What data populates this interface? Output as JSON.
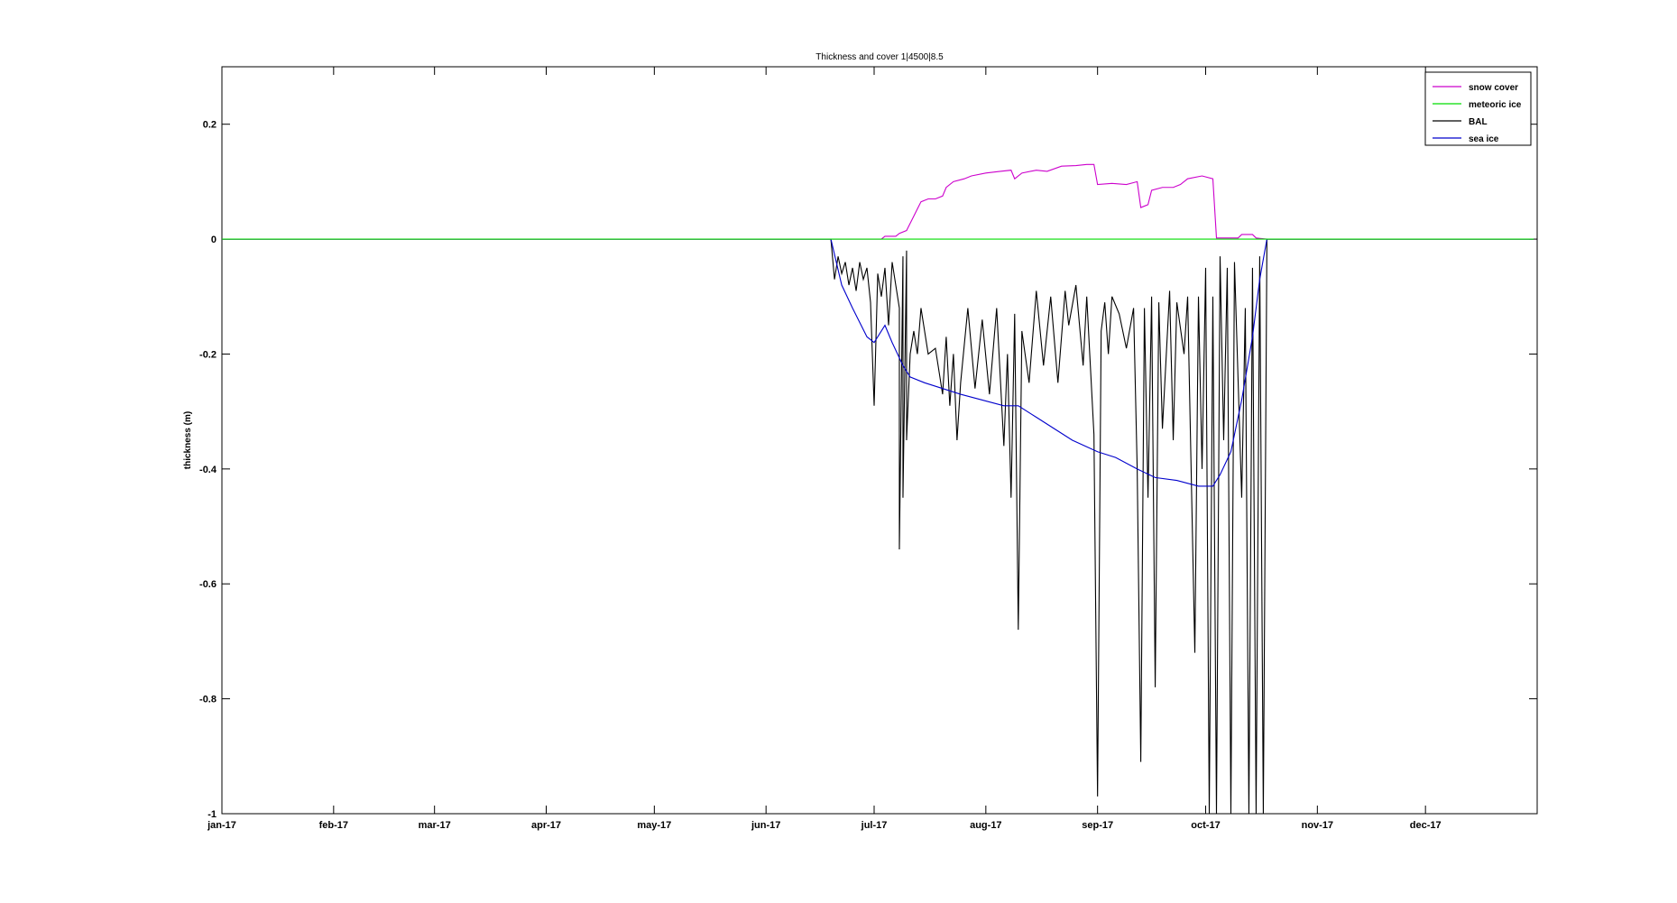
{
  "chart_data": {
    "type": "line",
    "title": "Thickness and cover 1|4500|8.5",
    "xlabel": "",
    "ylabel": "thickness (m)",
    "xlim": [
      "2017-01-01",
      "2017-12-31"
    ],
    "ylim": [
      -1,
      0.3
    ],
    "x_ticks": [
      "jan-17",
      "feb-17",
      "mar-17",
      "apr-17",
      "may-17",
      "jun-17",
      "jul-17",
      "aug-17",
      "sep-17",
      "oct-17",
      "nov-17",
      "dec-17"
    ],
    "x_tick_dates": [
      "2017-01-01",
      "2017-02-01",
      "2017-03-01",
      "2017-04-01",
      "2017-05-01",
      "2017-06-01",
      "2017-07-01",
      "2017-08-01",
      "2017-09-01",
      "2017-10-01",
      "2017-11-01",
      "2017-12-01"
    ],
    "y_ticks": [
      0.2,
      0,
      -0.2,
      -0.4,
      -0.6,
      -0.8,
      -1
    ],
    "y_tick_labels": [
      "0.2",
      "0",
      "-0.2",
      "-0.4",
      "-0.6",
      "-0.8",
      "-1"
    ],
    "grid": false,
    "legend_position": "top-right",
    "series": [
      {
        "name": "snow cover",
        "color": "#cc00cc",
        "points": [
          [
            "2017-01-01",
            0
          ],
          [
            "2017-06-19",
            0
          ],
          [
            "2017-07-03",
            0
          ],
          [
            "2017-07-04",
            0.005
          ],
          [
            "2017-07-07",
            0.005
          ],
          [
            "2017-07-08",
            0.01
          ],
          [
            "2017-07-10",
            0.015
          ],
          [
            "2017-07-12",
            0.04
          ],
          [
            "2017-07-14",
            0.065
          ],
          [
            "2017-07-16",
            0.07
          ],
          [
            "2017-07-18",
            0.07
          ],
          [
            "2017-07-20",
            0.075
          ],
          [
            "2017-07-21",
            0.09
          ],
          [
            "2017-07-23",
            0.1
          ],
          [
            "2017-07-26",
            0.105
          ],
          [
            "2017-07-28",
            0.11
          ],
          [
            "2017-08-01",
            0.115
          ],
          [
            "2017-08-05",
            0.118
          ],
          [
            "2017-08-08",
            0.12
          ],
          [
            "2017-08-09",
            0.105
          ],
          [
            "2017-08-11",
            0.115
          ],
          [
            "2017-08-15",
            0.12
          ],
          [
            "2017-08-18",
            0.118
          ],
          [
            "2017-08-22",
            0.127
          ],
          [
            "2017-08-26",
            0.128
          ],
          [
            "2017-08-29",
            0.13
          ],
          [
            "2017-08-31",
            0.13
          ],
          [
            "2017-09-01",
            0.095
          ],
          [
            "2017-09-05",
            0.097
          ],
          [
            "2017-09-09",
            0.095
          ],
          [
            "2017-09-12",
            0.1
          ],
          [
            "2017-09-13",
            0.055
          ],
          [
            "2017-09-15",
            0.06
          ],
          [
            "2017-09-16",
            0.085
          ],
          [
            "2017-09-19",
            0.09
          ],
          [
            "2017-09-22",
            0.09
          ],
          [
            "2017-09-24",
            0.095
          ],
          [
            "2017-09-26",
            0.105
          ],
          [
            "2017-09-30",
            0.11
          ],
          [
            "2017-10-03",
            0.105
          ],
          [
            "2017-10-04",
            0.002
          ],
          [
            "2017-10-10",
            0.002
          ],
          [
            "2017-10-11",
            0.008
          ],
          [
            "2017-10-14",
            0.008
          ],
          [
            "2017-10-15",
            0.002
          ],
          [
            "2017-10-18",
            0
          ],
          [
            "2017-12-31",
            0
          ]
        ]
      },
      {
        "name": "meteoric ice",
        "color": "#00dd00",
        "points": [
          [
            "2017-01-01",
            0
          ],
          [
            "2017-12-31",
            0
          ]
        ]
      },
      {
        "name": "BAL",
        "color": "#000000",
        "points": [
          [
            "2017-01-01",
            0
          ],
          [
            "2017-06-19",
            0
          ],
          [
            "2017-06-20",
            -0.07
          ],
          [
            "2017-06-21",
            -0.03
          ],
          [
            "2017-06-22",
            -0.06
          ],
          [
            "2017-06-23",
            -0.04
          ],
          [
            "2017-06-24",
            -0.08
          ],
          [
            "2017-06-25",
            -0.05
          ],
          [
            "2017-06-26",
            -0.09
          ],
          [
            "2017-06-27",
            -0.04
          ],
          [
            "2017-06-28",
            -0.07
          ],
          [
            "2017-06-29",
            -0.05
          ],
          [
            "2017-06-30",
            -0.11
          ],
          [
            "2017-07-01",
            -0.29
          ],
          [
            "2017-07-02",
            -0.06
          ],
          [
            "2017-07-03",
            -0.1
          ],
          [
            "2017-07-04",
            -0.05
          ],
          [
            "2017-07-05",
            -0.15
          ],
          [
            "2017-07-06",
            -0.04
          ],
          [
            "2017-07-07",
            -0.08
          ],
          [
            "2017-07-08",
            -0.12
          ],
          [
            "2017-07-08",
            -0.54
          ],
          [
            "2017-07-09",
            -0.03
          ],
          [
            "2017-07-09",
            -0.45
          ],
          [
            "2017-07-10",
            -0.02
          ],
          [
            "2017-07-10",
            -0.35
          ],
          [
            "2017-07-11",
            -0.2
          ],
          [
            "2017-07-12",
            -0.16
          ],
          [
            "2017-07-13",
            -0.2
          ],
          [
            "2017-07-14",
            -0.12
          ],
          [
            "2017-07-16",
            -0.2
          ],
          [
            "2017-07-18",
            -0.19
          ],
          [
            "2017-07-20",
            -0.27
          ],
          [
            "2017-07-21",
            -0.17
          ],
          [
            "2017-07-22",
            -0.29
          ],
          [
            "2017-07-23",
            -0.2
          ],
          [
            "2017-07-24",
            -0.35
          ],
          [
            "2017-07-25",
            -0.25
          ],
          [
            "2017-07-27",
            -0.12
          ],
          [
            "2017-07-29",
            -0.26
          ],
          [
            "2017-07-31",
            -0.14
          ],
          [
            "2017-08-02",
            -0.27
          ],
          [
            "2017-08-04",
            -0.12
          ],
          [
            "2017-08-06",
            -0.36
          ],
          [
            "2017-08-07",
            -0.2
          ],
          [
            "2017-08-08",
            -0.45
          ],
          [
            "2017-08-09",
            -0.13
          ],
          [
            "2017-08-10",
            -0.68
          ],
          [
            "2017-08-11",
            -0.16
          ],
          [
            "2017-08-13",
            -0.25
          ],
          [
            "2017-08-15",
            -0.09
          ],
          [
            "2017-08-17",
            -0.22
          ],
          [
            "2017-08-19",
            -0.1
          ],
          [
            "2017-08-21",
            -0.25
          ],
          [
            "2017-08-23",
            -0.09
          ],
          [
            "2017-08-24",
            -0.15
          ],
          [
            "2017-08-26",
            -0.08
          ],
          [
            "2017-08-28",
            -0.22
          ],
          [
            "2017-08-29",
            -0.1
          ],
          [
            "2017-08-31",
            -0.34
          ],
          [
            "2017-09-01",
            -0.97
          ],
          [
            "2017-09-02",
            -0.16
          ],
          [
            "2017-09-03",
            -0.11
          ],
          [
            "2017-09-04",
            -0.2
          ],
          [
            "2017-09-05",
            -0.1
          ],
          [
            "2017-09-07",
            -0.13
          ],
          [
            "2017-09-09",
            -0.19
          ],
          [
            "2017-09-11",
            -0.12
          ],
          [
            "2017-09-12",
            -0.4
          ],
          [
            "2017-09-13",
            -0.91
          ],
          [
            "2017-09-14",
            -0.12
          ],
          [
            "2017-09-15",
            -0.45
          ],
          [
            "2017-09-16",
            -0.1
          ],
          [
            "2017-09-17",
            -0.78
          ],
          [
            "2017-09-18",
            -0.11
          ],
          [
            "2017-09-19",
            -0.33
          ],
          [
            "2017-09-21",
            -0.09
          ],
          [
            "2017-09-22",
            -0.35
          ],
          [
            "2017-09-23",
            -0.11
          ],
          [
            "2017-09-25",
            -0.2
          ],
          [
            "2017-09-26",
            -0.1
          ],
          [
            "2017-09-28",
            -0.72
          ],
          [
            "2017-09-29",
            -0.1
          ],
          [
            "2017-09-30",
            -0.4
          ],
          [
            "2017-10-01",
            -0.05
          ],
          [
            "2017-10-02",
            -1.0
          ],
          [
            "2017-10-03",
            -0.1
          ],
          [
            "2017-10-04",
            -1.0
          ],
          [
            "2017-10-05",
            -0.03
          ],
          [
            "2017-10-06",
            -0.35
          ],
          [
            "2017-10-07",
            -0.05
          ],
          [
            "2017-10-08",
            -1.0
          ],
          [
            "2017-10-09",
            -0.04
          ],
          [
            "2017-10-11",
            -0.45
          ],
          [
            "2017-10-12",
            -0.12
          ],
          [
            "2017-10-13",
            -1.0
          ],
          [
            "2017-10-14",
            -0.05
          ],
          [
            "2017-10-15",
            -1.0
          ],
          [
            "2017-10-16",
            -0.03
          ],
          [
            "2017-10-17",
            -1.0
          ],
          [
            "2017-10-18",
            0
          ],
          [
            "2017-12-31",
            0
          ]
        ]
      },
      {
        "name": "sea ice",
        "color": "#0000cc",
        "points": [
          [
            "2017-01-01",
            0
          ],
          [
            "2017-06-19",
            0
          ],
          [
            "2017-06-22",
            -0.08
          ],
          [
            "2017-06-25",
            -0.12
          ],
          [
            "2017-06-29",
            -0.17
          ],
          [
            "2017-07-01",
            -0.18
          ],
          [
            "2017-07-04",
            -0.15
          ],
          [
            "2017-07-06",
            -0.18
          ],
          [
            "2017-07-09",
            -0.22
          ],
          [
            "2017-07-11",
            -0.24
          ],
          [
            "2017-07-15",
            -0.25
          ],
          [
            "2017-07-20",
            -0.26
          ],
          [
            "2017-07-25",
            -0.27
          ],
          [
            "2017-07-31",
            -0.28
          ],
          [
            "2017-08-06",
            -0.29
          ],
          [
            "2017-08-10",
            -0.29
          ],
          [
            "2017-08-15",
            -0.31
          ],
          [
            "2017-08-20",
            -0.33
          ],
          [
            "2017-08-25",
            -0.35
          ],
          [
            "2017-09-01",
            -0.37
          ],
          [
            "2017-09-06",
            -0.38
          ],
          [
            "2017-09-12",
            -0.4
          ],
          [
            "2017-09-17",
            -0.415
          ],
          [
            "2017-09-23",
            -0.42
          ],
          [
            "2017-09-29",
            -0.43
          ],
          [
            "2017-10-03",
            -0.43
          ],
          [
            "2017-10-05",
            -0.41
          ],
          [
            "2017-10-08",
            -0.37
          ],
          [
            "2017-10-11",
            -0.28
          ],
          [
            "2017-10-14",
            -0.17
          ],
          [
            "2017-10-16",
            -0.07
          ],
          [
            "2017-10-18",
            0
          ],
          [
            "2017-12-31",
            0
          ]
        ]
      }
    ]
  }
}
